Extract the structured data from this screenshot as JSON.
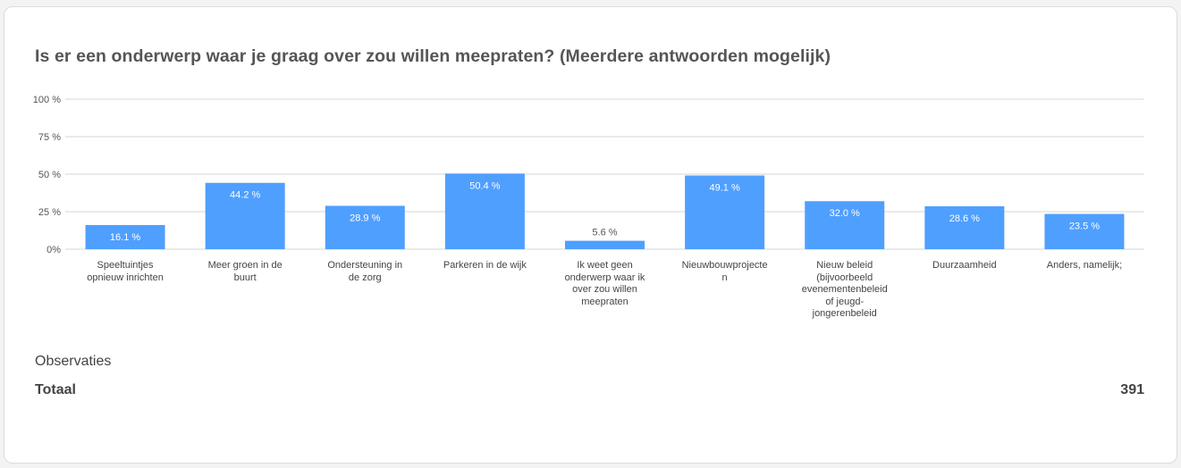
{
  "title": "Is er een onderwerp waar je graag over zou willen meepraten? (Meerdere antwoorden mogelijk)",
  "chart_data": {
    "type": "bar",
    "title": "Is er een onderwerp waar je graag over zou willen meepraten? (Meerdere antwoorden mogelijk)",
    "categories": [
      "Speeltuintjes\nopnieuw inrichten",
      "Meer groen in de\nbuurt",
      "Ondersteuning in\nde zorg",
      "Parkeren in de wijk",
      "Ik weet geen\nonderwerp waar ik\nover zou willen\nmeepraten",
      "Nieuwbouwprojecte\nn",
      "Nieuw beleid\n(bijvoorbeeld\nevenementenbeleid\nof jeugd-\njongerenbeleid",
      "Duurzaamheid",
      "Anders, namelijk;"
    ],
    "values": [
      16.1,
      44.2,
      28.9,
      50.4,
      5.6,
      49.1,
      32.0,
      28.6,
      23.5
    ],
    "value_labels": [
      "16.1 %",
      "44.2 %",
      "28.9 %",
      "50.4 %",
      "5.6 %",
      "49.1 %",
      "32.0 %",
      "28.6 %",
      "23.5 %"
    ],
    "yticks": [
      "0%",
      "25 %",
      "50 %",
      "75 %",
      "100 %"
    ],
    "ylim": [
      0,
      100
    ],
    "grid": true,
    "bar_color": "#4f9fff"
  },
  "observations": {
    "label": "Observaties",
    "total_label": "Totaal",
    "total_value": "391"
  }
}
